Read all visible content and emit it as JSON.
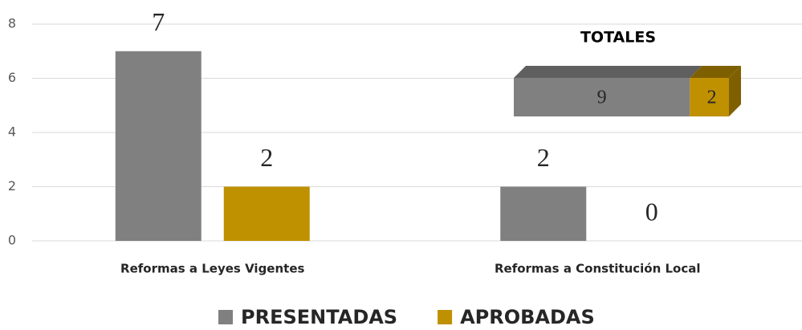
{
  "chart_data": [
    {
      "type": "bar",
      "categories": [
        "Reformas a Leyes Vigentes",
        "Reformas a Constitución Local"
      ],
      "series": [
        {
          "name": "PRESENTADAS",
          "color": "#808080",
          "values": [
            7,
            2
          ]
        },
        {
          "name": "APROBADAS",
          "color": "#bf9000",
          "values": [
            2,
            0
          ]
        }
      ],
      "ylim": [
        0,
        8
      ],
      "yticks": [
        0,
        2,
        4,
        6,
        8
      ],
      "grid": true,
      "legend": "bottom"
    },
    {
      "type": "stacked-bar-3d",
      "title": "TOTALES",
      "segments": [
        {
          "value": 9,
          "color": "#808080"
        },
        {
          "value": 2,
          "color": "#bf9000"
        }
      ]
    }
  ]
}
